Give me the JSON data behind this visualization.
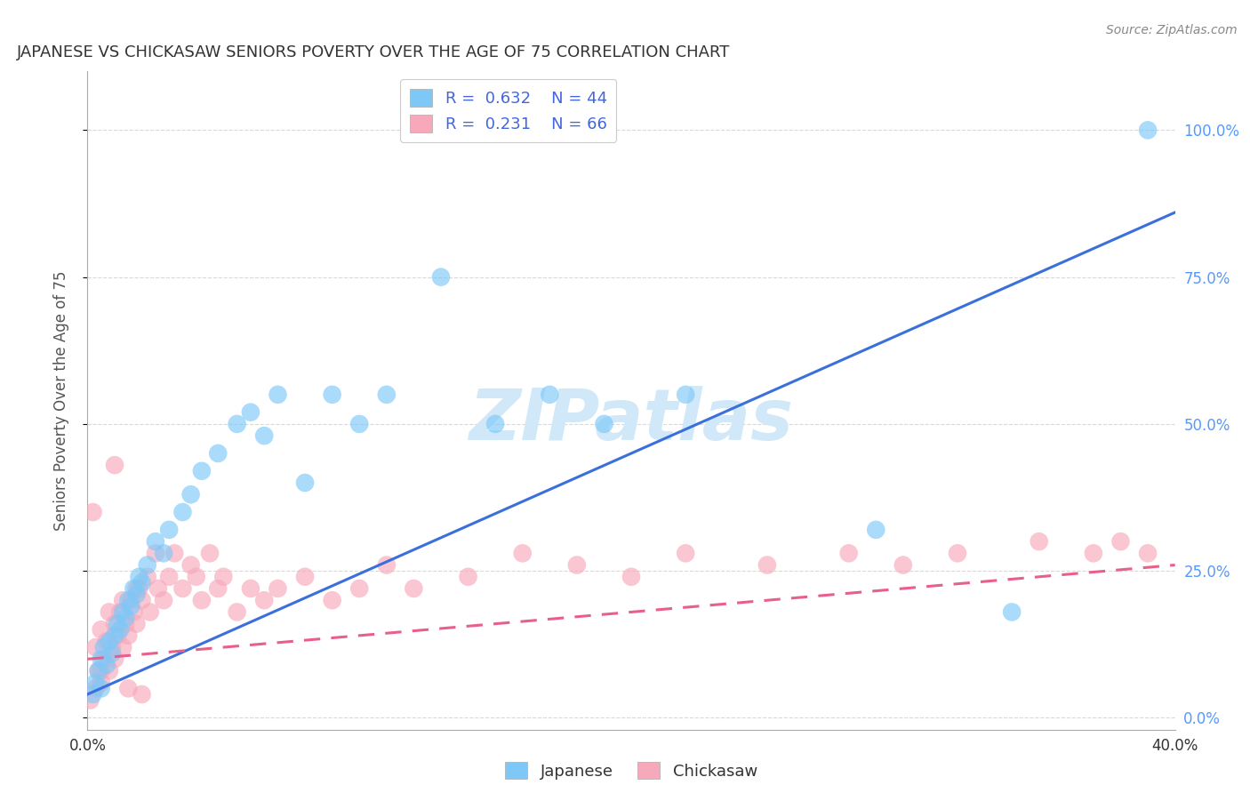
{
  "title": "JAPANESE VS CHICKASAW SENIORS POVERTY OVER THE AGE OF 75 CORRELATION CHART",
  "source": "Source: ZipAtlas.com",
  "ylabel": "Seniors Poverty Over the Age of 75",
  "ytick_labels": [
    "0.0%",
    "25.0%",
    "50.0%",
    "75.0%",
    "100.0%"
  ],
  "ytick_values": [
    0.0,
    0.25,
    0.5,
    0.75,
    1.0
  ],
  "xlim": [
    0.0,
    0.4
  ],
  "ylim": [
    -0.02,
    1.1
  ],
  "japanese_R": 0.632,
  "japanese_N": 44,
  "chickasaw_R": 0.231,
  "chickasaw_N": 66,
  "japanese_color": "#7ec8f8",
  "chickasaw_color": "#f7a8bb",
  "japanese_line_color": "#3a6fdc",
  "chickasaw_line_color": "#e8608a",
  "watermark_color": "#d0e8f8",
  "background_color": "#ffffff",
  "grid_color": "#d0d0d0",
  "title_color": "#333333",
  "source_color": "#888888",
  "yticklabel_color": "#5599ff",
  "xticklabel_color": "#333333",
  "legend_text_color": "#4466dd",
  "japanese_x": [
    0.002,
    0.003,
    0.004,
    0.005,
    0.005,
    0.006,
    0.007,
    0.008,
    0.009,
    0.01,
    0.011,
    0.012,
    0.013,
    0.014,
    0.015,
    0.016,
    0.017,
    0.018,
    0.019,
    0.02,
    0.022,
    0.025,
    0.028,
    0.03,
    0.035,
    0.038,
    0.042,
    0.048,
    0.055,
    0.06,
    0.065,
    0.07,
    0.08,
    0.09,
    0.1,
    0.11,
    0.13,
    0.15,
    0.17,
    0.19,
    0.22,
    0.29,
    0.34,
    0.39
  ],
  "japanese_y": [
    0.04,
    0.06,
    0.08,
    0.05,
    0.1,
    0.12,
    0.09,
    0.13,
    0.11,
    0.14,
    0.16,
    0.15,
    0.18,
    0.17,
    0.2,
    0.19,
    0.22,
    0.21,
    0.24,
    0.23,
    0.26,
    0.3,
    0.28,
    0.32,
    0.35,
    0.38,
    0.42,
    0.45,
    0.5,
    0.52,
    0.48,
    0.55,
    0.4,
    0.55,
    0.5,
    0.55,
    0.75,
    0.5,
    0.55,
    0.5,
    0.55,
    0.32,
    0.18,
    1.0
  ],
  "chickasaw_x": [
    0.001,
    0.002,
    0.003,
    0.003,
    0.004,
    0.005,
    0.005,
    0.006,
    0.007,
    0.008,
    0.008,
    0.009,
    0.01,
    0.01,
    0.011,
    0.012,
    0.013,
    0.013,
    0.014,
    0.015,
    0.016,
    0.017,
    0.018,
    0.018,
    0.019,
    0.02,
    0.022,
    0.023,
    0.025,
    0.026,
    0.028,
    0.03,
    0.032,
    0.035,
    0.038,
    0.04,
    0.042,
    0.045,
    0.048,
    0.05,
    0.055,
    0.06,
    0.065,
    0.07,
    0.08,
    0.09,
    0.1,
    0.11,
    0.12,
    0.14,
    0.16,
    0.18,
    0.2,
    0.22,
    0.25,
    0.28,
    0.3,
    0.32,
    0.35,
    0.37,
    0.38,
    0.39,
    0.01,
    0.005,
    0.015,
    0.02
  ],
  "chickasaw_y": [
    0.03,
    0.35,
    0.05,
    0.12,
    0.08,
    0.06,
    0.15,
    0.1,
    0.13,
    0.08,
    0.18,
    0.12,
    0.1,
    0.16,
    0.14,
    0.18,
    0.12,
    0.2,
    0.16,
    0.14,
    0.2,
    0.18,
    0.22,
    0.16,
    0.22,
    0.2,
    0.24,
    0.18,
    0.28,
    0.22,
    0.2,
    0.24,
    0.28,
    0.22,
    0.26,
    0.24,
    0.2,
    0.28,
    0.22,
    0.24,
    0.18,
    0.22,
    0.2,
    0.22,
    0.24,
    0.2,
    0.22,
    0.26,
    0.22,
    0.24,
    0.28,
    0.26,
    0.24,
    0.28,
    0.26,
    0.28,
    0.26,
    0.28,
    0.3,
    0.28,
    0.3,
    0.28,
    0.43,
    0.08,
    0.05,
    0.04
  ],
  "jap_line_x": [
    0.0,
    0.4
  ],
  "jap_line_y": [
    0.04,
    0.86
  ],
  "chick_line_x": [
    0.0,
    0.4
  ],
  "chick_line_y": [
    0.1,
    0.26
  ]
}
